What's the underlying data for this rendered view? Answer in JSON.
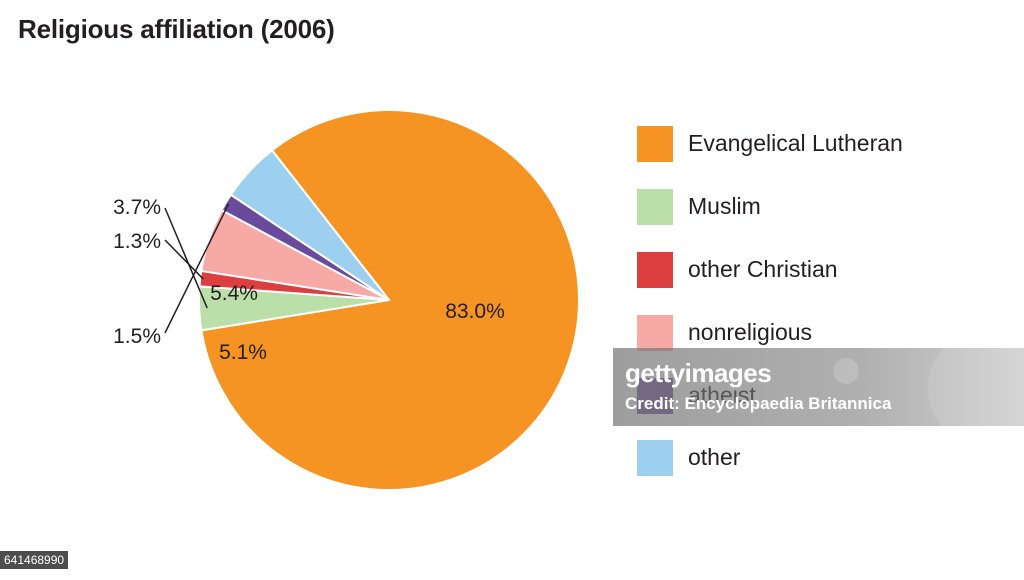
{
  "chart_data": {
    "type": "pie",
    "title": "Religious affiliation (2006)",
    "slices": [
      {
        "name": "Evangelical Lutheran",
        "value": 83.0,
        "label": "83.0%",
        "color": "#f59422"
      },
      {
        "name": "Muslim",
        "value": 3.7,
        "label": "3.7%",
        "color": "#badfa8"
      },
      {
        "name": "other Christian",
        "value": 1.3,
        "label": "1.3%",
        "color": "#dd3e3f"
      },
      {
        "name": "nonreligious",
        "value": 5.4,
        "label": "5.4%",
        "color": "#f7a9a6"
      },
      {
        "name": "atheist",
        "value": 1.5,
        "label": "1.5%",
        "color": "#6a4a9c"
      },
      {
        "name": "other",
        "value": 5.1,
        "label": "5.1%",
        "color": "#9dcfee"
      }
    ],
    "legend_position": "right"
  },
  "watermark": {
    "brand": "gettyimages",
    "credit": "Credit: Encyclopaedia Britannica"
  },
  "footer": {
    "image_id": "641468990"
  }
}
